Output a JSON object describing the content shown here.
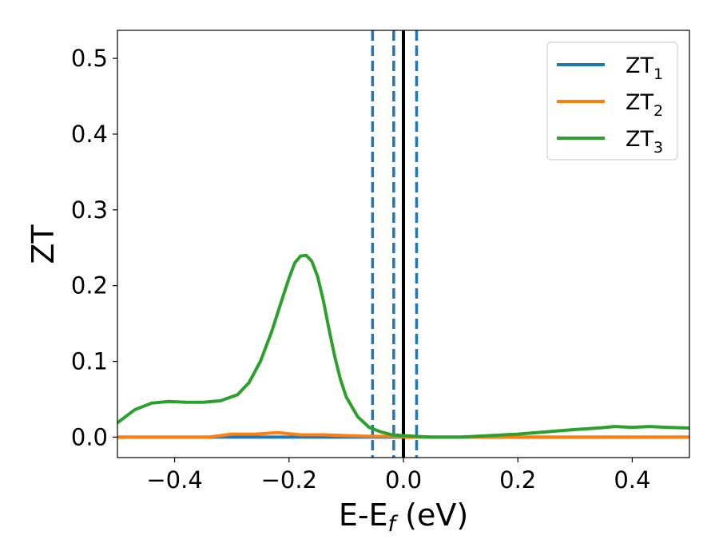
{
  "chart_data": {
    "type": "line",
    "xlabel": "E-E",
    "xlabel_sub": "f",
    "xlabel_unit": " (eV)",
    "ylabel": "ZT",
    "xlim": [
      -0.5,
      0.5
    ],
    "ylim": [
      -0.027,
      0.537
    ],
    "xticks": [
      -0.4,
      -0.2,
      0.0,
      0.2,
      0.4
    ],
    "xtick_labels": [
      "−0.4",
      "−0.2",
      "0.0",
      "0.2",
      "0.4"
    ],
    "yticks": [
      0.0,
      0.1,
      0.2,
      0.3,
      0.4,
      0.5
    ],
    "ytick_labels": [
      "0.0",
      "0.1",
      "0.2",
      "0.3",
      "0.4",
      "0.5"
    ],
    "grid": false,
    "legend_position": "top-right",
    "vlines": [
      {
        "x": -0.054,
        "style": "dashed",
        "color": "#1f77b4"
      },
      {
        "x": -0.017,
        "style": "dashed",
        "color": "#1f77b4"
      },
      {
        "x": 0.023,
        "style": "dashed",
        "color": "#1f77b4"
      },
      {
        "x": 0.0,
        "style": "solid",
        "color": "#000000"
      }
    ],
    "series": [
      {
        "name": "ZT",
        "name_sub": "1",
        "color": "#1f77b4",
        "x": [
          -0.5,
          0.5
        ],
        "y": [
          0.0,
          0.0
        ]
      },
      {
        "name": "ZT",
        "name_sub": "2",
        "color": "#ff7f0e",
        "x": [
          -0.5,
          -0.4,
          -0.34,
          -0.3,
          -0.26,
          -0.22,
          -0.18,
          -0.14,
          -0.1,
          -0.06,
          -0.02,
          0.02,
          0.1,
          0.2,
          0.3,
          0.4,
          0.5
        ],
        "y": [
          0.0,
          0.0,
          0.0,
          0.004,
          0.004,
          0.006,
          0.003,
          0.003,
          0.002,
          0.001,
          0.001,
          0.0,
          0.0,
          0.0,
          0.0,
          0.0,
          0.0
        ]
      },
      {
        "name": "ZT",
        "name_sub": "3",
        "color": "#2ca02c",
        "x": [
          -0.5,
          -0.47,
          -0.44,
          -0.41,
          -0.38,
          -0.35,
          -0.32,
          -0.29,
          -0.27,
          -0.25,
          -0.23,
          -0.21,
          -0.2,
          -0.19,
          -0.18,
          -0.17,
          -0.16,
          -0.15,
          -0.14,
          -0.13,
          -0.12,
          -0.11,
          -0.1,
          -0.08,
          -0.06,
          -0.04,
          -0.02,
          0.0,
          0.02,
          0.05,
          0.1,
          0.15,
          0.2,
          0.25,
          0.3,
          0.34,
          0.37,
          0.4,
          0.43,
          0.46,
          0.5
        ],
        "y": [
          0.019,
          0.036,
          0.045,
          0.047,
          0.046,
          0.046,
          0.048,
          0.056,
          0.072,
          0.1,
          0.14,
          0.187,
          0.21,
          0.23,
          0.239,
          0.24,
          0.232,
          0.212,
          0.18,
          0.142,
          0.106,
          0.076,
          0.053,
          0.027,
          0.013,
          0.007,
          0.003,
          0.002,
          0.001,
          0.0,
          0.0,
          0.002,
          0.004,
          0.007,
          0.01,
          0.012,
          0.014,
          0.013,
          0.014,
          0.013,
          0.012
        ]
      }
    ]
  }
}
